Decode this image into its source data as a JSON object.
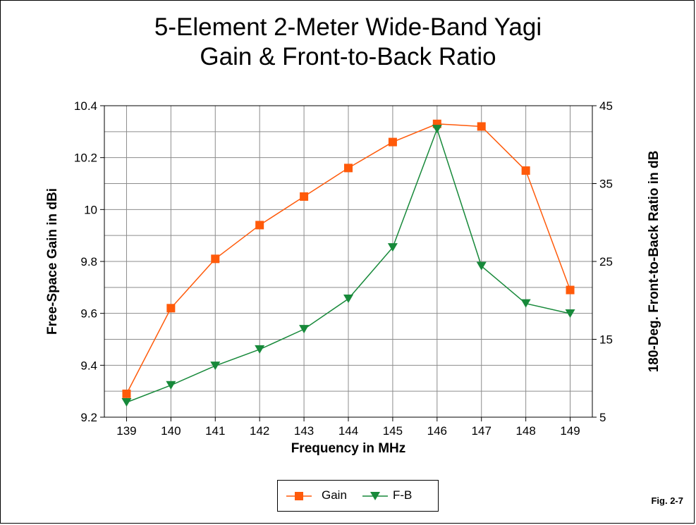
{
  "figure_label": "Fig. 2-7",
  "chart_data": {
    "type": "line",
    "title": [
      "5-Element 2-Meter Wide-Band Yagi",
      "Gain & Front-to-Back Ratio"
    ],
    "xlabel": "Frequency in MHz",
    "ylabel": "Free-Space Gain in dBi",
    "y2label": "180-Deg. Front-to-Back Ratio in dB",
    "x": [
      139,
      140,
      141,
      142,
      143,
      144,
      145,
      146,
      147,
      148,
      149
    ],
    "x_tick_labels": [
      "139",
      "140",
      "141",
      "142",
      "143",
      "144",
      "145",
      "146",
      "147",
      "148",
      "149"
    ],
    "ylim": [
      9.2,
      10.4
    ],
    "y_tick_labels": [
      "9.2",
      "9.4",
      "9.6",
      "9.8",
      "10",
      "10.2",
      "10.4"
    ],
    "y_ticks": [
      9.2,
      9.4,
      9.6,
      9.8,
      10.0,
      10.2,
      10.4
    ],
    "y2lim": [
      5,
      45
    ],
    "y2_tick_labels": [
      "5",
      "15",
      "25",
      "35",
      "45"
    ],
    "y2_ticks": [
      5,
      15,
      25,
      35,
      45
    ],
    "grid": true,
    "legend_position": "bottom-center",
    "series": [
      {
        "name": "Gain",
        "axis": "left",
        "color": "#ff5a0a",
        "marker": "square",
        "values": [
          9.29,
          9.62,
          9.81,
          9.94,
          10.05,
          10.16,
          10.26,
          10.33,
          10.32,
          10.15,
          9.69
        ]
      },
      {
        "name": "F-B",
        "axis": "right",
        "color": "#17893a",
        "marker": "triangle-down",
        "values": [
          6.9,
          9.1,
          11.6,
          13.7,
          16.3,
          20.2,
          26.8,
          42.0,
          24.4,
          19.6,
          18.3
        ]
      }
    ]
  }
}
